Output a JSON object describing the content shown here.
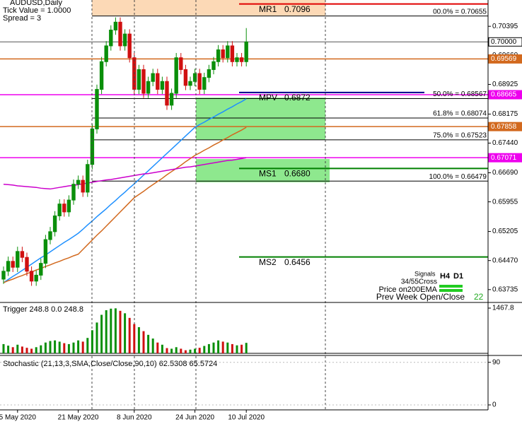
{
  "header": {
    "symbol": "AUDUSD,Daily",
    "tick_value": "Tick Value = 1.0000",
    "spread": "Spread = 3"
  },
  "chart_data": {
    "type": "candlestick",
    "categories": [
      null,
      null,
      null,
      "5 May 2020",
      null,
      null,
      null,
      null,
      null,
      null,
      null,
      null,
      null,
      null,
      null,
      null,
      "21 May 2020",
      null,
      null,
      null,
      null,
      null,
      null,
      null,
      null,
      null,
      null,
      null,
      "8 Jun 2020",
      null,
      null,
      null,
      null,
      null,
      null,
      null,
      null,
      null,
      null,
      null,
      null,
      "24 Jun 2020",
      null,
      null,
      null,
      null,
      null,
      null,
      null,
      null,
      null,
      null,
      "10 Jul 2020"
    ],
    "open": [
      0.64,
      0.642,
      0.6445,
      0.643,
      0.647,
      0.6455,
      0.642,
      0.6395,
      0.641,
      0.644,
      0.65,
      0.652,
      0.656,
      0.659,
      0.657,
      0.66,
      0.664,
      0.665,
      0.662,
      0.669,
      0.678,
      0.688,
      0.695,
      0.699,
      0.703,
      0.705,
      0.699,
      0.702,
      0.696,
      0.688,
      0.693,
      0.687,
      0.69,
      0.692,
      0.688,
      0.69,
      0.684,
      0.687,
      0.696,
      0.693,
      0.689,
      0.69,
      0.692,
      0.688,
      0.691,
      0.693,
      0.695,
      0.698,
      0.696,
      0.699,
      0.695,
      0.696,
      0.695
    ],
    "high": [
      0.6432,
      0.6457,
      0.6457,
      0.6482,
      0.6482,
      0.6467,
      0.6432,
      0.6422,
      0.6452,
      0.6512,
      0.6532,
      0.6572,
      0.6602,
      0.6602,
      0.6612,
      0.6652,
      0.6662,
      0.6662,
      0.6702,
      0.6792,
      0.6892,
      0.6962,
      0.7002,
      0.7042,
      0.7062,
      0.7062,
      0.7032,
      0.7032,
      0.6972,
      0.6942,
      0.6942,
      0.6912,
      0.6932,
      0.6932,
      0.6912,
      0.6912,
      0.6882,
      0.6972,
      0.6972,
      0.6942,
      0.6912,
      0.6932,
      0.6932,
      0.6922,
      0.6942,
      0.6962,
      0.6992,
      0.6992,
      0.7002,
      0.7002,
      0.6972,
      0.6972,
      0.7035
    ],
    "low": [
      0.6388,
      0.6408,
      0.6418,
      0.6418,
      0.6443,
      0.6408,
      0.6383,
      0.6383,
      0.6398,
      0.6428,
      0.6488,
      0.6508,
      0.6548,
      0.6558,
      0.6558,
      0.6588,
      0.6628,
      0.6608,
      0.6608,
      0.6678,
      0.6768,
      0.6868,
      0.6938,
      0.6978,
      0.7018,
      0.6978,
      0.6978,
      0.6948,
      0.6868,
      0.6868,
      0.6858,
      0.6858,
      0.6888,
      0.6868,
      0.6868,
      0.6828,
      0.6828,
      0.6858,
      0.6918,
      0.6878,
      0.6878,
      0.6888,
      0.6868,
      0.6868,
      0.6898,
      0.6918,
      0.6938,
      0.6948,
      0.6948,
      0.6938,
      0.6938,
      0.6938,
      0.6938
    ],
    "close": [
      0.642,
      0.6445,
      0.643,
      0.647,
      0.6455,
      0.642,
      0.6395,
      0.641,
      0.644,
      0.65,
      0.652,
      0.656,
      0.659,
      0.657,
      0.66,
      0.664,
      0.665,
      0.662,
      0.669,
      0.678,
      0.688,
      0.695,
      0.699,
      0.703,
      0.705,
      0.699,
      0.702,
      0.696,
      0.688,
      0.693,
      0.687,
      0.69,
      0.692,
      0.688,
      0.69,
      0.684,
      0.687,
      0.696,
      0.693,
      0.689,
      0.69,
      0.692,
      0.688,
      0.691,
      0.693,
      0.695,
      0.698,
      0.696,
      0.699,
      0.695,
      0.696,
      0.695,
      0.7
    ],
    "up_color": "#0a8f0a",
    "down_color": "#d01010",
    "ylim": [
      0.6341,
      0.7106
    ],
    "yticks": [
      0.70395,
      {
        "value": 0.6966,
        "label": "0.69660"
      },
      0.68925,
      0.68175,
      {
        "value": 0.6744,
        "label": "0.67440"
      },
      {
        "value": 0.6669,
        "label": "0.66690"
      },
      0.65955,
      0.65205,
      {
        "value": 0.6447,
        "label": "0.64470"
      },
      0.63735
    ],
    "overlays": [
      {
        "color": "#1e90ff",
        "values": [
          0.6391,
          0.6399,
          0.6407,
          0.6414,
          0.6422,
          0.643,
          0.6438,
          0.6446,
          0.6454,
          0.6461,
          0.6469,
          0.6477,
          0.6485,
          0.6493,
          0.65,
          0.6508,
          0.6516,
          0.6526,
          0.6537,
          0.6547,
          0.6558,
          0.6568,
          0.6578,
          0.6589,
          0.6599,
          0.661,
          0.662,
          0.6631,
          0.6641,
          0.6652,
          0.6663,
          0.6674,
          0.6685,
          0.6696,
          0.6707,
          0.6718,
          0.6729,
          0.674,
          0.6751,
          0.6762,
          0.6773,
          0.6784,
          0.6791,
          0.6797,
          0.6804,
          0.681,
          0.6817,
          0.6823,
          0.683,
          0.6836,
          0.6843,
          0.6849,
          0.6856
        ]
      },
      {
        "color": "#d2691e",
        "values": [
          0.6391,
          0.6396,
          0.64,
          0.6405,
          0.6409,
          0.6414,
          0.6418,
          0.6423,
          0.6427,
          0.6432,
          0.6436,
          0.6441,
          0.6445,
          0.645,
          0.6454,
          0.6459,
          0.6463,
          0.6475,
          0.6487,
          0.6499,
          0.6511,
          0.6522,
          0.6534,
          0.6546,
          0.6558,
          0.657,
          0.6582,
          0.6594,
          0.6606,
          0.6614,
          0.6622,
          0.6631,
          0.6639,
          0.6647,
          0.6655,
          0.6664,
          0.6672,
          0.668,
          0.6688,
          0.6697,
          0.6705,
          0.6713,
          0.6719,
          0.6726,
          0.6732,
          0.6739,
          0.6745,
          0.6752,
          0.6758,
          0.6765,
          0.6771,
          0.6777,
          0.6784
        ]
      },
      {
        "color": "#cc00cc",
        "values": [
          0.664,
          0.6639,
          0.6638,
          0.6636,
          0.6635,
          0.6634,
          0.6633,
          0.6632,
          0.663,
          0.6629,
          0.6628,
          0.663,
          0.6632,
          0.6634,
          0.6636,
          0.6637,
          0.6639,
          0.6641,
          0.6643,
          0.6645,
          0.6647,
          0.6649,
          0.6651,
          0.6652,
          0.6654,
          0.6656,
          0.6658,
          0.666,
          0.6662,
          0.6664,
          0.6666,
          0.6667,
          0.6669,
          0.6671,
          0.6673,
          0.6675,
          0.6677,
          0.6679,
          0.6681,
          0.6683,
          0.6684,
          0.6686,
          0.6688,
          0.669,
          0.6692,
          0.6694,
          0.6696,
          0.6698,
          0.67,
          0.6701,
          0.6703,
          0.6705,
          0.6707
        ]
      }
    ],
    "hlines": [
      {
        "value": 0.7,
        "label": "0.70000",
        "color": "#555555",
        "box": "#ffffff"
      },
      {
        "value": 0.69569,
        "label": "0.69569",
        "color": "#d2691e"
      },
      {
        "value": 0.68665,
        "label": "0.68665",
        "color": "#ee00ee"
      },
      {
        "value": 0.67858,
        "label": "0.67858",
        "color": "#d2691e"
      },
      {
        "value": 0.67071,
        "label": "0.67071",
        "color": "#ee00ee"
      }
    ],
    "levels": [
      {
        "name": "MR1",
        "value": 0.7096,
        "label": "0.7096",
        "color": "#e00000"
      },
      {
        "name": "MPV",
        "value": 0.6872,
        "label": "0.6872",
        "color": "#00008b"
      },
      {
        "name": "MS1",
        "value": 0.668,
        "label": "0.6680",
        "color": "#008000"
      },
      {
        "name": "MS2",
        "value": 0.6456,
        "label": "0.6456",
        "color": "#008000"
      }
    ],
    "fib": [
      {
        "value": 0.70655,
        "label": "00.0% = 0.70655"
      },
      {
        "value": 0.68567,
        "label": "50.0% = 0.68567"
      },
      {
        "value": 0.68074,
        "label": "61.8% = 0.68074"
      },
      {
        "value": 0.67523,
        "label": "75.0% = 0.67523"
      },
      {
        "value": 0.66479,
        "label": "100.0% = 0.66479"
      }
    ],
    "trigger": {
      "title": "Trigger 248.8 0.0 248.8",
      "ylim": [
        0,
        1467.8
      ],
      "yticks": [
        1467.8
      ],
      "values": [
        300,
        250,
        200,
        280,
        220,
        180,
        150,
        200,
        260,
        350,
        400,
        420,
        380,
        330,
        300,
        350,
        420,
        380,
        500,
        750,
        1000,
        1250,
        1400,
        1450,
        1460,
        1380,
        1300,
        1150,
        950,
        850,
        720,
        600,
        480,
        350,
        280,
        170,
        150,
        200,
        150,
        100,
        120,
        150,
        180,
        240,
        300,
        350,
        420,
        380,
        350,
        300,
        260,
        280,
        340
      ]
    },
    "stochastic": {
      "title": "Stochastic (21,13,3,SMA,Close/Close,90,10) 62.5308 65.5724",
      "ylim": [
        0,
        100
      ],
      "yticks": [
        90,
        0
      ]
    },
    "signals": {
      "title": "Signals",
      "columns": [
        "H4",
        "D1"
      ],
      "rows": [
        "34/55Cross",
        "Price on200EMA",
        "Prev Week Open/Close"
      ],
      "value": 22
    }
  }
}
